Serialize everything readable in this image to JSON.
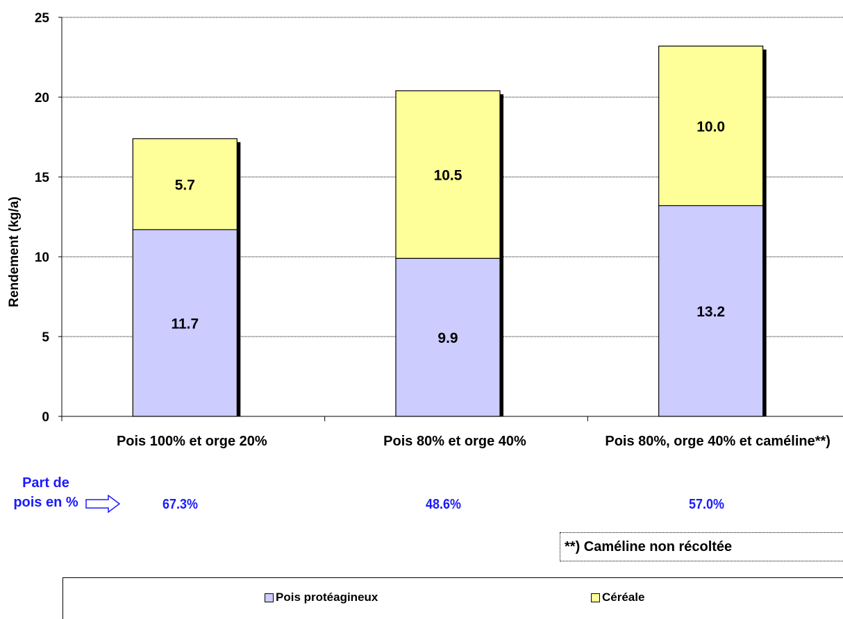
{
  "chart_data": {
    "type": "bar",
    "stacked": true,
    "categories": [
      "Pois 100% et orge 20%",
      "Pois 80% et orge 40%",
      "Pois 80%, orge 40% et caméline**)"
    ],
    "series": [
      {
        "name": "Pois protéagineux",
        "values": [
          11.7,
          9.9,
          13.2
        ],
        "color": "#ccccff"
      },
      {
        "name": "Céréale",
        "values": [
          5.7,
          10.5,
          10.0
        ],
        "color": "#ffff99"
      }
    ],
    "data_labels": [
      [
        "11.7",
        "9.9",
        "13.2"
      ],
      [
        "5.7",
        "10.5",
        "10.0"
      ]
    ],
    "ylabel": "Rendement (kg/a)",
    "ylim": [
      0,
      25
    ],
    "yticks": [
      0,
      5,
      10,
      15,
      20,
      25
    ],
    "grid": true,
    "legend_position": "bottom"
  },
  "share": {
    "label_line1": "Part de",
    "label_line2": "pois en %",
    "values": [
      "67.3%",
      "48.6%",
      "57.0%"
    ]
  },
  "footnote": "**) Caméline non récoltée"
}
